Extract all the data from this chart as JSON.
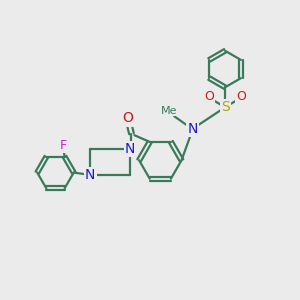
{
  "bg_color": "#ebebeb",
  "bond_color": "#3a7a5a",
  "bond_width": 1.6,
  "atom_colors": {
    "N": "#1a1acc",
    "O": "#cc1a1a",
    "F": "#cc22cc",
    "S": "#aaaa00",
    "C": "#3a7a5a"
  },
  "figsize": [
    3.0,
    3.0
  ],
  "dpi": 100
}
